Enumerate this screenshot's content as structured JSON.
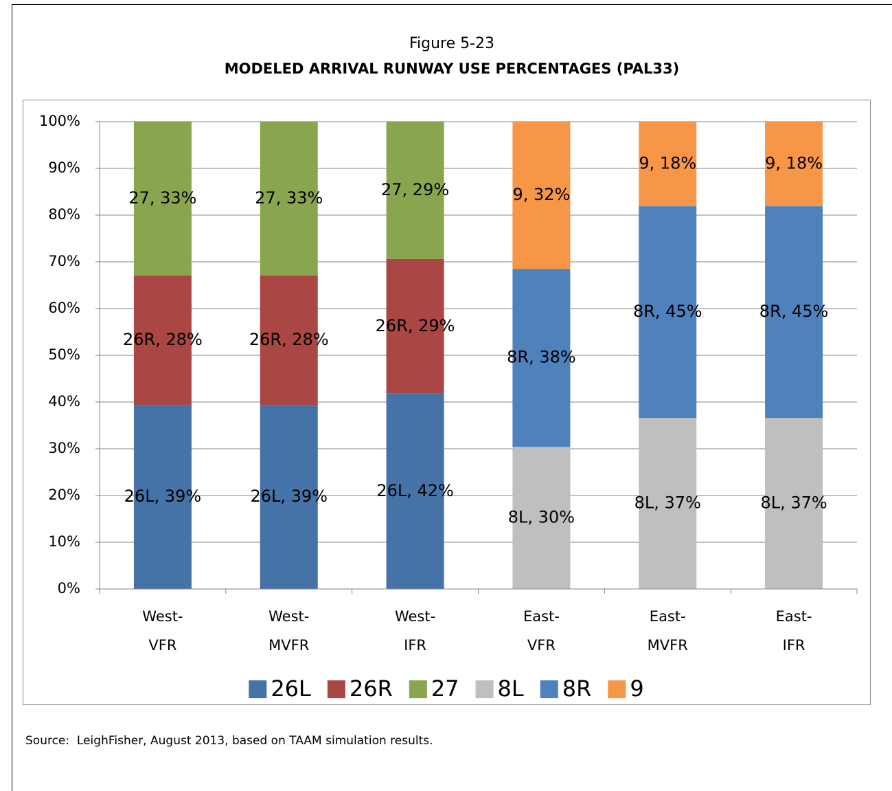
{
  "chart_data": {
    "type": "stacked_bar",
    "title": "Figure 5-23",
    "subtitle": "MODELED ARRIVAL RUNWAY USE PERCENTAGES (PAL33)",
    "source": "Source:  LeighFisher, August 2013, based on TAAM simulation results.",
    "categories": [
      "West-VFR",
      "West-MVFR",
      "West-IFR",
      "East-VFR",
      "East-MVFR",
      "East-IFR"
    ],
    "series": [
      {
        "name": "26L",
        "color": "#4572a7",
        "values": [
          39.4,
          39.4,
          41.8,
          null,
          null,
          null
        ],
        "value_labels": [
          "26L, 39%",
          "26L, 39%",
          "26L, 42%",
          null,
          null,
          null
        ]
      },
      {
        "name": "26R",
        "color": "#aa4643",
        "values": [
          27.7,
          27.7,
          28.8,
          null,
          null,
          null
        ],
        "value_labels": [
          "26R, 28%",
          "26R, 28%",
          "26R, 29%",
          null,
          null,
          null
        ]
      },
      {
        "name": "27",
        "color": "#89a54e",
        "values": [
          32.9,
          32.9,
          29.4,
          null,
          null,
          null
        ],
        "value_labels": [
          "27, 33%",
          "27, 33%",
          "27, 29%",
          null,
          null,
          null
        ]
      },
      {
        "name": "8L",
        "color": "#bfbfbf",
        "values": [
          null,
          null,
          null,
          30.4,
          36.6,
          36.6
        ],
        "value_labels": [
          null,
          null,
          null,
          "8L, 30%",
          "8L, 37%",
          "8L, 37%"
        ]
      },
      {
        "name": "8R",
        "color": "#4f81bd",
        "values": [
          null,
          null,
          null,
          38.1,
          45.3,
          45.3
        ],
        "value_labels": [
          null,
          null,
          null,
          "8R, 38%",
          "8R, 45%",
          "8R, 45%"
        ]
      },
      {
        "name": "9",
        "color": "#f79646",
        "values": [
          null,
          null,
          null,
          31.5,
          18.1,
          18.1
        ],
        "value_labels": [
          null,
          null,
          null,
          "9, 32%",
          "9, 18%",
          "9, 18%"
        ]
      }
    ],
    "ylim": [
      0,
      100
    ],
    "yticks": [
      {
        "value": 0,
        "label": "0%"
      },
      {
        "value": 10,
        "label": "10%"
      },
      {
        "value": 20,
        "label": "20%"
      },
      {
        "value": 30,
        "label": "30%"
      },
      {
        "value": 40,
        "label": "40%"
      },
      {
        "value": 50,
        "label": "50%"
      },
      {
        "value": 60,
        "label": "60%"
      },
      {
        "value": 70,
        "label": "70%"
      },
      {
        "value": 80,
        "label": "80%"
      },
      {
        "value": 90,
        "label": "90%"
      },
      {
        "value": 100,
        "label": "100%"
      }
    ],
    "grid": true,
    "legend": "bottom"
  }
}
